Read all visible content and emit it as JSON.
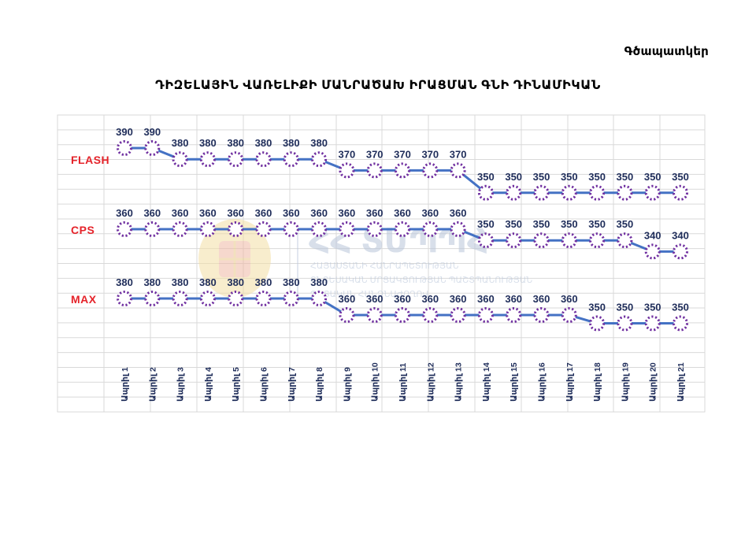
{
  "page": {
    "corner_label": "Գծապատկեր",
    "title": "ԴԻԶԵԼԱՅԻՆ ՎԱՌԵԼԻՔԻ ՄԱՆՐԱԾԱԽ ԻՐԱՑՄԱՆ ԳՆԻ ԴԻՆԱՄԻԿԱՆ"
  },
  "watermark": {
    "logo_text": "ՀՀ ՏՄՊՊՀ",
    "line1": "ՀԱՅԱՍՏԱՆԻ ՀԱՆՐԱՊԵՏՈՒԹՅԱՆ",
    "line2": "ՏՆՏԵՍԱԿԱՆ ՄՐՑԱԿՑՈՒԹՅԱՆ ՊԱՇՏՊԱՆՈՒԹՅԱՆ",
    "line3": "ՊԵՏԱԿԱՆ ՀԱՆՁՆԱԺՈՂՈՎ"
  },
  "chart_data": {
    "type": "line",
    "title": "ԴԻԶԵԼԱՅԻՆ ՎԱՌԵԼԻՔԻ ՄԱՆՐԱԾԱԽ ԻՐԱՑՄԱՆ ԳՆԻ ԴԻՆԱՄԻԿԱՆ",
    "categories": [
      "Ապրիլ 1",
      "Ապրիլ 2",
      "Ապրիլ 3",
      "Ապրիլ 4",
      "Ապրիլ 5",
      "Ապրիլ 6",
      "Ապրիլ 7",
      "Ապրիլ 8",
      "Ապրիլ 9",
      "Ապրիլ 10",
      "Ապրիլ 11",
      "Ապրիլ 12",
      "Ապրիլ 13",
      "Ապրիլ 14",
      "Ապրիլ 15",
      "Ապրիլ 16",
      "Ապրիլ 17",
      "Ապրիլ 18",
      "Ապրիլ 19",
      "Ապրիլ 20",
      "Ապրիլ 21"
    ],
    "series": [
      {
        "name": "FLASH",
        "values": [
          390,
          390,
          380,
          380,
          380,
          380,
          380,
          380,
          370,
          370,
          370,
          370,
          370,
          350,
          350,
          350,
          350,
          350,
          350,
          350,
          350
        ]
      },
      {
        "name": "CPS",
        "values": [
          360,
          360,
          360,
          360,
          360,
          360,
          360,
          360,
          360,
          360,
          360,
          360,
          360,
          350,
          350,
          350,
          350,
          350,
          350,
          340,
          340
        ]
      },
      {
        "name": "MAX",
        "values": [
          380,
          380,
          380,
          380,
          380,
          380,
          380,
          380,
          360,
          360,
          360,
          360,
          360,
          360,
          360,
          360,
          360,
          350,
          350,
          350,
          350
        ]
      }
    ],
    "xlabel": "",
    "ylabel": "",
    "grid": true,
    "legend": "left",
    "colors": {
      "line": "#4472c4",
      "marker": "#7030a0",
      "series_label": "#e5232a",
      "data_label": "#1f2d5a",
      "grid": "#d9d9d9"
    }
  }
}
